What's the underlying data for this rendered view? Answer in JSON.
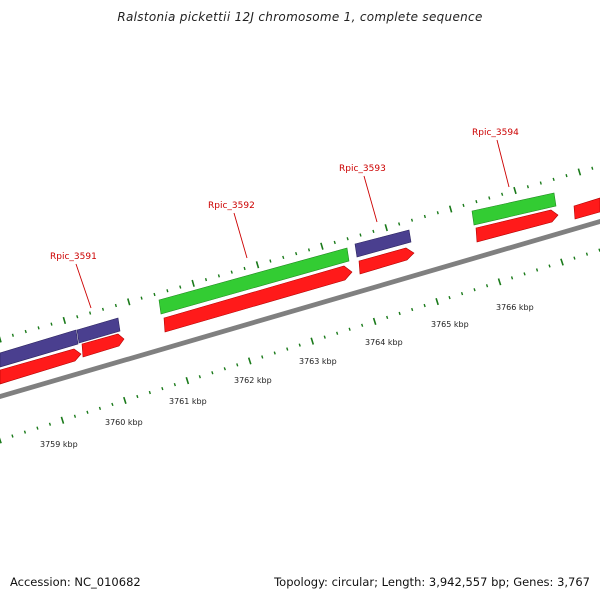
{
  "title": "Ralstonia pickettii 12J chromosome 1, complete sequence",
  "footer": {
    "accession": "Accession: NC_010682",
    "summary": "Topology: circular; Length: 3,942,557 bp; Genes: 3,767"
  },
  "colors": {
    "backbone": "#808080",
    "tick": "#1a7a1a",
    "gene_red": "#ff1a1a",
    "gene_blue": "#4a3f8f",
    "gene_green": "#33cc33",
    "label_red": "#cc0000"
  },
  "kbp_labels": [
    "3759 kbp",
    "3760 kbp",
    "3761 kbp",
    "3762 kbp",
    "3763 kbp",
    "3764 kbp",
    "3765 kbp",
    "3766 kbp"
  ],
  "gene_labels": [
    "Rpic_3591",
    "Rpic_3592",
    "Rpic_3593",
    "Rpic_3594"
  ],
  "tracks": {
    "red": {
      "color": "#ff1a1a"
    },
    "blue": {
      "color": "#4a3f8f"
    },
    "green": {
      "color": "#33cc33"
    }
  }
}
